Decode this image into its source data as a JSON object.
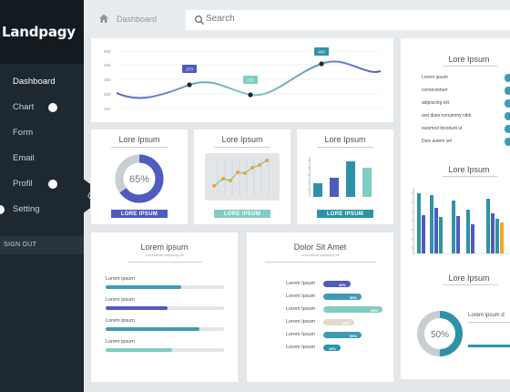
{
  "app": {
    "logo": "Landpagy"
  },
  "sidebar": {
    "items": [
      {
        "label": "Dashboard",
        "active": true,
        "dot": false
      },
      {
        "label": "Chart",
        "active": false,
        "dot": true
      },
      {
        "label": "Form",
        "active": false,
        "dot": false
      },
      {
        "label": "Email",
        "active": false,
        "dot": false
      },
      {
        "label": "Profil",
        "active": false,
        "dot": true
      },
      {
        "label": "Setting",
        "active": false,
        "dot": false
      }
    ],
    "signout": "SIGN OUT"
  },
  "header": {
    "breadcrumb": "Dashboard",
    "search_placeholder": "Search"
  },
  "main_chart": {
    "yticks": [
      "500",
      "400",
      "300",
      "200",
      "100"
    ],
    "callouts": [
      "270",
      "210",
      "400"
    ]
  },
  "cards": {
    "donut": {
      "title": "Lore Ipsum",
      "value_text": "65%",
      "value": 0.65,
      "button": "LORE IPSUM",
      "color": "#4f5bbf"
    },
    "line": {
      "title": "Lore Ipsum",
      "button": "LORE IPSUM",
      "color": "#7fcdc3"
    },
    "bars": {
      "title": "Lore Ipsum",
      "button": "LORE IPSUM",
      "color": "#2e93a8"
    }
  },
  "progress_card": {
    "title": "Lorem ipsum",
    "subtitle": "consectetuer adipiscing elit",
    "rows": [
      {
        "label": "Lorem ipsum",
        "value": 0.64,
        "color": "#3f9bb5"
      },
      {
        "label": "Lorem ipsum",
        "value": 0.52,
        "color": "#4f5bbf"
      },
      {
        "label": "Lorem ipsum",
        "value": 0.79,
        "color": "#3f9bb5"
      },
      {
        "label": "Lorem ipsum",
        "value": 0.56,
        "color": "#7fcdc3"
      }
    ]
  },
  "dolor_card": {
    "title": "Dolor Sit Amet",
    "subtitle": "consectetuer adipiscing elit",
    "rows": [
      {
        "label": "Lorem Ipsum",
        "pct": "40%",
        "value": 0.4,
        "color": "#4f5bbf"
      },
      {
        "label": "Lorem Ipsum",
        "pct": "55%",
        "value": 0.55,
        "color": "#3f9bb5"
      },
      {
        "label": "Lorem Ipsum",
        "pct": "85%",
        "value": 0.85,
        "color": "#7fcdc3"
      },
      {
        "label": "Lorem Ipsum",
        "pct": "45%",
        "value": 0.45,
        "color": "#e3dccb"
      },
      {
        "label": "Lorem Ipsum",
        "pct": "55%",
        "value": 0.55,
        "color": "#3f9bb5"
      },
      {
        "label": "Lorem Ipsum",
        "pct": "25%",
        "value": 0.25,
        "color": "#2e93a8"
      }
    ]
  },
  "right_panel": {
    "list_title": "Lore Ipsum",
    "list": [
      "Lorem ipsum",
      "consectetuer",
      "adipiscing elit",
      "sed diam nonummy nibh",
      "euismod tincidunt ut",
      "Duis autem vel"
    ],
    "bars_title": "Lore Ipsum",
    "donut_title": "Lore Ipsum",
    "donut_value_text": "50%",
    "donut_value": 0.5,
    "donut_label": "Lorem ipsum d"
  }
}
